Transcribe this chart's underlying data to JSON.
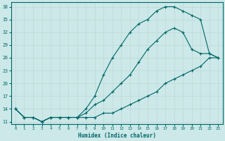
{
  "background_color": "#cce8e8",
  "grid_color": "#c0d8d8",
  "line_color": "#006868",
  "xlabel": "Humidex (Indice chaleur)",
  "xlim": [
    -0.5,
    23.5
  ],
  "ylim": [
    10.5,
    39
  ],
  "yticks": [
    11,
    14,
    17,
    20,
    23,
    26,
    29,
    32,
    35,
    38
  ],
  "xticks": [
    0,
    1,
    2,
    3,
    4,
    5,
    6,
    7,
    8,
    9,
    10,
    11,
    12,
    13,
    14,
    15,
    16,
    17,
    18,
    19,
    20,
    21,
    22,
    23
  ],
  "curve_bottom_x": [
    0,
    1,
    2,
    3,
    4,
    5,
    6,
    7,
    8,
    9,
    10,
    11,
    12,
    13,
    14,
    15,
    16,
    17,
    18,
    19,
    20,
    21,
    22,
    23
  ],
  "curve_bottom_y": [
    14,
    12,
    12,
    11,
    12,
    12,
    12,
    12,
    12,
    12,
    13,
    13,
    14,
    15,
    16,
    17,
    18,
    20,
    21,
    22,
    23,
    24,
    26,
    26
  ],
  "curve_mid_x": [
    0,
    1,
    2,
    3,
    4,
    5,
    6,
    7,
    8,
    9,
    10,
    11,
    12,
    13,
    14,
    15,
    16,
    17,
    18,
    19,
    20,
    21,
    22,
    23
  ],
  "curve_mid_y": [
    14,
    12,
    12,
    11,
    12,
    12,
    12,
    12,
    13,
    15,
    16,
    18,
    20,
    22,
    25,
    28,
    30,
    32,
    33,
    32,
    28,
    27,
    27,
    26
  ],
  "curve_top_x": [
    0,
    1,
    2,
    3,
    4,
    5,
    6,
    7,
    8,
    9,
    10,
    11,
    12,
    13,
    14,
    15,
    16,
    17,
    18,
    19,
    20,
    21,
    22,
    23
  ],
  "curve_top_y": [
    14,
    12,
    12,
    11,
    12,
    12,
    12,
    12,
    14,
    17,
    22,
    26,
    29,
    32,
    34,
    35,
    37,
    38,
    38,
    37,
    36,
    35,
    27,
    26
  ]
}
